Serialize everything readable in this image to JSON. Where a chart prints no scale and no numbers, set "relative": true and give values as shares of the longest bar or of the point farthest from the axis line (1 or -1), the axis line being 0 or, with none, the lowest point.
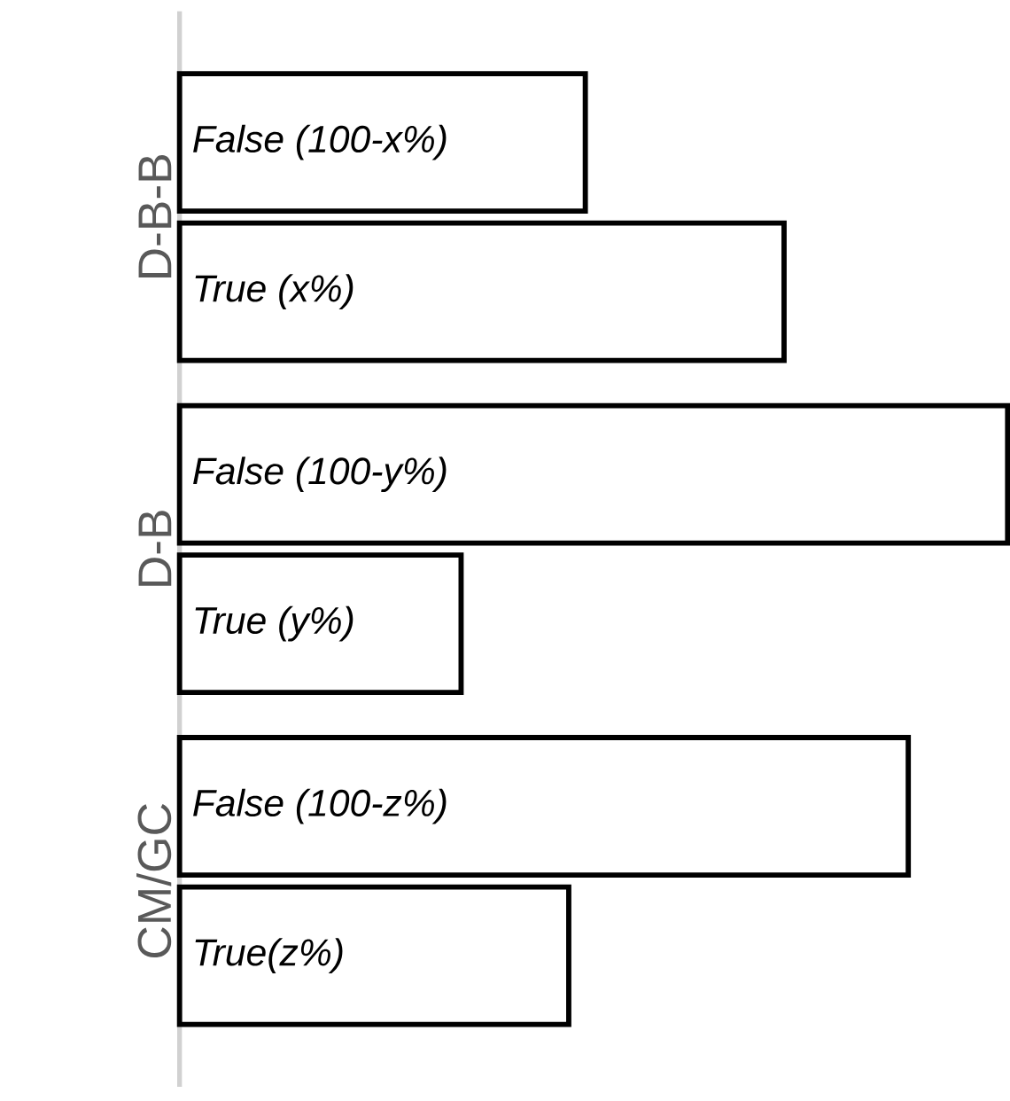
{
  "chart_data": {
    "type": "bar",
    "orientation": "horizontal",
    "relative": true,
    "categories": [
      "D-B-B",
      "D-B",
      "CM/GC"
    ],
    "series": [
      {
        "color": "#ffffff",
        "values": [
          0.49,
          1,
          0.88
        ]
      },
      {
        "color": "#ffffff",
        "values": [
          0.73,
          0.34,
          0.47
        ]
      }
    ],
    "annotations": [
      "False (100-x%)",
      "True (x%)",
      "False (100-y%)",
      "True (y%)",
      "False (100-z%)",
      "True(z%)"
    ]
  }
}
